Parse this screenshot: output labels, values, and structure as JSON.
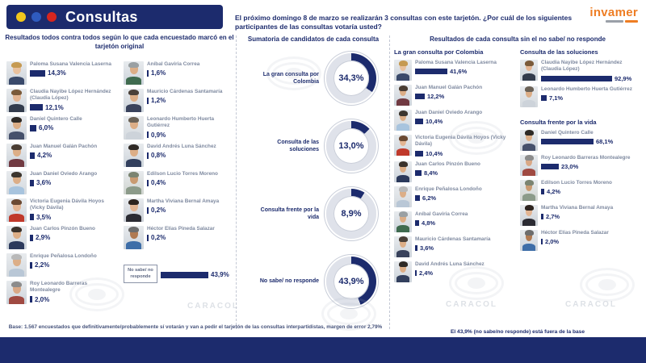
{
  "header": {
    "title": "Consultas",
    "dot_colors": [
      "#f2c71d",
      "#2f5bbf",
      "#d6261f"
    ]
  },
  "intro": {
    "text": "El próximo domingo 8 de marzo se realizarán 3 consultas con este tarjetón. ¿Por cuál de los siguientes participantes de las consultas votaría usted?"
  },
  "logo": {
    "text": "invamer",
    "color": "#ee7d23"
  },
  "colors": {
    "navy": "#1c2b6d",
    "bar": "#1c2b6d",
    "track": "#dfe2ea",
    "name_gray": "#7f8aa0"
  },
  "left_panel": {
    "title": "Resultados todos contra todos según lo que cada encuestado marcó en el tarjetón original",
    "columns": [
      [
        {
          "name": "Paloma Susana Valencia Laserna",
          "value": 14.3,
          "pct": "14,3%",
          "photo": {
            "bg": "#ccd3da",
            "hair": "#c59a52",
            "skin": "#e8c19e",
            "top": "#3a4a6b"
          }
        },
        {
          "name": "Claudia Nayibe López Hernández (Claudia López)",
          "value": 12.1,
          "pct": "12,1%",
          "photo": {
            "bg": "#ccd3da",
            "hair": "#7a5a3a",
            "skin": "#e3b593",
            "top": "#333c4d"
          }
        },
        {
          "name": "Daniel Quintero Calle",
          "value": 6.0,
          "pct": "6,0%",
          "photo": {
            "bg": "#c7ced6",
            "hair": "#2e2a26",
            "skin": "#dcae87",
            "top": "#45506b"
          }
        },
        {
          "name": "Juan Manuel Galán Pachón",
          "value": 4.2,
          "pct": "4,2%",
          "photo": {
            "bg": "#ccd3da",
            "hair": "#4a3d33",
            "skin": "#dcae87",
            "top": "#713a42"
          }
        },
        {
          "name": "Juan Daniel Oviedo Arango",
          "value": 3.6,
          "pct": "3,6%",
          "photo": {
            "bg": "#d4d9de",
            "hair": "#3c362f",
            "skin": "#dcae87",
            "top": "#a8c4de"
          }
        },
        {
          "name": "Victoria Eugenia Dávila Hoyos (Vicky Dávila)",
          "value": 3.5,
          "pct": "3,5%",
          "photo": {
            "bg": "#ccd3da",
            "hair": "#6b4a33",
            "skin": "#e3b593",
            "top": "#c0392b"
          }
        },
        {
          "name": "Juan Carlos Pinzón Bueno",
          "value": 2.9,
          "pct": "2,9%",
          "photo": {
            "bg": "#ccd3da",
            "hair": "#3a322b",
            "skin": "#dcae87",
            "top": "#2c3a5c"
          }
        },
        {
          "name": "Enrique Peñalosa Londoño",
          "value": 2.2,
          "pct": "2,2%",
          "photo": {
            "bg": "#d4d9de",
            "hair": "#b9b9b9",
            "skin": "#dcae87",
            "top": "#b9c7d6"
          }
        },
        {
          "name": "Roy Leonardo Barreras Montealegre",
          "value": 2.0,
          "pct": "2,0%",
          "photo": {
            "bg": "#ccd3da",
            "hair": "#8c8c8c",
            "skin": "#d9a886",
            "top": "#a04a42"
          }
        }
      ],
      [
        {
          "name": "Aníbal Gaviria Correa",
          "value": 1.6,
          "pct": "1,6%",
          "photo": {
            "bg": "#ccd3da",
            "hair": "#9aa0a3",
            "skin": "#dcae87",
            "top": "#3f6b4f"
          }
        },
        {
          "name": "Mauricio Cárdenas Santamaría",
          "value": 1.2,
          "pct": "1,2%",
          "photo": {
            "bg": "#ccd3da",
            "hair": "#4a4038",
            "skin": "#dcae87",
            "top": "#39425c"
          }
        },
        {
          "name": "Leonardo Humberto Huerta Gutiérrez",
          "value": 0.9,
          "pct": "0,9%",
          "photo": {
            "bg": "#d4d9de",
            "hair": "#6b6257",
            "skin": "#dcae87",
            "top": "#cdd3da"
          }
        },
        {
          "name": "David Andrés Luna Sánchez",
          "value": 0.8,
          "pct": "0,8%",
          "photo": {
            "bg": "#ccd3da",
            "hair": "#2f2a26",
            "skin": "#dcae87",
            "top": "#33405e"
          }
        },
        {
          "name": "Edilson Lucio Torres Moreno",
          "value": 0.4,
          "pct": "0,4%",
          "photo": {
            "bg": "#d0d4cf",
            "hair": "#7b8471",
            "skin": "#c99b72",
            "top": "#8c9b8a"
          }
        },
        {
          "name": "Martha Viviana Bernal Amaya",
          "value": 0.2,
          "pct": "0,2%",
          "photo": {
            "bg": "#c9ced5",
            "hair": "#2e241f",
            "skin": "#e3b593",
            "top": "#2b2b33"
          }
        },
        {
          "name": "Héctor Elías Pineda Salazar",
          "value": 0.2,
          "pct": "0,2%",
          "photo": {
            "bg": "#ccd3da",
            "hair": "#6d6d6d",
            "skin": "#b07a52",
            "top": "#3e6ea8"
          }
        },
        {
          "box": true,
          "name": "No sabe/ no responde",
          "value": 43.9,
          "pct": "43,9%"
        }
      ]
    ]
  },
  "middle_panel": {
    "title": "Sumatoria de candidatos de cada consulta",
    "donuts": [
      {
        "label": "La gran consulta por Colombia",
        "value": 34.3,
        "pct": "34,3%"
      },
      {
        "label": "Consulta de las soluciones",
        "value": 13.0,
        "pct": "13,0%"
      },
      {
        "label": "Consulta frente por la vida",
        "value": 8.9,
        "pct": "8,9%"
      },
      {
        "label": "No sabe/ no responde",
        "value": 43.9,
        "pct": "43,9%"
      }
    ]
  },
  "right_panel": {
    "title": "Resultados de cada consulta sin el no sabe/ no responde",
    "groups": [
      {
        "header": "La gran consulta por Colombia",
        "items": [
          {
            "name": "Paloma Susana Valencia Laserna",
            "value": 41.6,
            "pct": "41,6%",
            "photo": {
              "bg": "#ccd3da",
              "hair": "#c59a52",
              "skin": "#e8c19e",
              "top": "#3a4a6b"
            }
          },
          {
            "name": "Juan Manuel Galán Pachón",
            "value": 12.2,
            "pct": "12,2%",
            "photo": {
              "bg": "#ccd3da",
              "hair": "#4a3d33",
              "skin": "#dcae87",
              "top": "#713a42"
            }
          },
          {
            "name": "Juan Daniel Oviedo Arango",
            "value": 10.4,
            "pct": "10,4%",
            "photo": {
              "bg": "#d4d9de",
              "hair": "#3c362f",
              "skin": "#dcae87",
              "top": "#a8c4de"
            }
          },
          {
            "name": "Victoria Eugenia Dávila Hoyos (Vicky Dávila)",
            "value": 10.4,
            "pct": "10,4%",
            "photo": {
              "bg": "#ccd3da",
              "hair": "#6b4a33",
              "skin": "#e3b593",
              "top": "#c0392b"
            }
          },
          {
            "name": "Juan Carlos Pinzón Bueno",
            "value": 8.4,
            "pct": "8,4%",
            "photo": {
              "bg": "#ccd3da",
              "hair": "#3a322b",
              "skin": "#dcae87",
              "top": "#2c3a5c"
            }
          },
          {
            "name": "Enrique Peñalosa Londoño",
            "value": 6.2,
            "pct": "6,2%",
            "photo": {
              "bg": "#d4d9de",
              "hair": "#b9b9b9",
              "skin": "#dcae87",
              "top": "#b9c7d6"
            }
          },
          {
            "name": "Aníbal Gaviria Correa",
            "value": 4.8,
            "pct": "4,8%",
            "photo": {
              "bg": "#ccd3da",
              "hair": "#9aa0a3",
              "skin": "#dcae87",
              "top": "#3f6b4f"
            }
          },
          {
            "name": "Mauricio Cárdenas Santamaría",
            "value": 3.6,
            "pct": "3,6%",
            "photo": {
              "bg": "#ccd3da",
              "hair": "#4a4038",
              "skin": "#dcae87",
              "top": "#39425c"
            }
          },
          {
            "name": "David Andrés Luna Sánchez",
            "value": 2.4,
            "pct": "2,4%",
            "photo": {
              "bg": "#ccd3da",
              "hair": "#2f2a26",
              "skin": "#dcae87",
              "top": "#33405e"
            }
          }
        ]
      },
      {
        "header": "Consulta de las soluciones",
        "items": [
          {
            "name": "Claudia Nayibe López Hernández (Claudia López)",
            "value": 92.9,
            "pct": "92,9%",
            "photo": {
              "bg": "#ccd3da",
              "hair": "#7a5a3a",
              "skin": "#e3b593",
              "top": "#333c4d"
            }
          },
          {
            "name": "Leonardo Humberto Huerta Gutiérrez",
            "value": 7.1,
            "pct": "7,1%",
            "photo": {
              "bg": "#d4d9de",
              "hair": "#6b6257",
              "skin": "#dcae87",
              "top": "#cdd3da"
            }
          }
        ]
      },
      {
        "header": "Consulta frente por la vida",
        "items": [
          {
            "name": "Daniel Quintero Calle",
            "value": 68.1,
            "pct": "68,1%",
            "photo": {
              "bg": "#c7ced6",
              "hair": "#2e2a26",
              "skin": "#dcae87",
              "top": "#45506b"
            }
          },
          {
            "name": "Roy Leonardo Barreras Montealegre",
            "value": 23.0,
            "pct": "23,0%",
            "photo": {
              "bg": "#ccd3da",
              "hair": "#8c8c8c",
              "skin": "#d9a886",
              "top": "#a04a42"
            }
          },
          {
            "name": "Edilson Lucio Torres Moreno",
            "value": 4.2,
            "pct": "4,2%",
            "photo": {
              "bg": "#d0d4cf",
              "hair": "#7b8471",
              "skin": "#c99b72",
              "top": "#8c9b8a"
            }
          },
          {
            "name": "Martha Viviana Bernal Amaya",
            "value": 2.7,
            "pct": "2,7%",
            "photo": {
              "bg": "#c9ced5",
              "hair": "#2e241f",
              "skin": "#e3b593",
              "top": "#2b2b33"
            }
          },
          {
            "name": "Héctor Elías Pineda Salazar",
            "value": 2.0,
            "pct": "2,0%",
            "photo": {
              "bg": "#ccd3da",
              "hair": "#6d6d6d",
              "skin": "#b07a52",
              "top": "#3e6ea8"
            }
          }
        ]
      }
    ]
  },
  "footers": {
    "base": "Base: 1.567 encuestados que definitivamente/probablemente sí votarán y van a pedir el tarjetón de las consultas interpartidistas, margen de error 2,79%",
    "right": "El 43,9% (no sabe/no responde) está fuera de la base"
  },
  "watermark": {
    "brand": "CARACOL"
  },
  "chart_data": [
    {
      "type": "bar",
      "title": "Resultados todos contra todos según lo que cada encuestado marcó en el tarjetón original",
      "categories": [
        "Paloma Susana Valencia Laserna",
        "Claudia Nayibe López Hernández (Claudia López)",
        "Daniel Quintero Calle",
        "Juan Manuel Galán Pachón",
        "Juan Daniel Oviedo Arango",
        "Victoria Eugenia Dávila Hoyos (Vicky Dávila)",
        "Juan Carlos Pinzón Bueno",
        "Enrique Peñalosa Londoño",
        "Roy Leonardo Barreras Montealegre",
        "Aníbal Gaviria Correa",
        "Mauricio Cárdenas Santamaría",
        "Leonardo Humberto Huerta Gutiérrez",
        "David Andrés Luna Sánchez",
        "Edilson Lucio Torres Moreno",
        "Martha Viviana Bernal Amaya",
        "Héctor Elías Pineda Salazar",
        "No sabe/ no responde"
      ],
      "values": [
        14.3,
        12.1,
        6.0,
        4.2,
        3.6,
        3.5,
        2.9,
        2.2,
        2.0,
        1.6,
        1.2,
        0.9,
        0.8,
        0.4,
        0.2,
        0.2,
        43.9
      ],
      "unit": "%"
    },
    {
      "type": "pie",
      "title": "Sumatoria de candidatos de cada consulta",
      "categories": [
        "La gran consulta por Colombia",
        "Consulta de las soluciones",
        "Consulta frente por la vida",
        "No sabe/ no responde"
      ],
      "values": [
        34.3,
        13.0,
        8.9,
        43.9
      ],
      "unit": "%"
    },
    {
      "type": "bar",
      "title": "La gran consulta por Colombia (sin no sabe/no responde)",
      "categories": [
        "Paloma Susana Valencia Laserna",
        "Juan Manuel Galán Pachón",
        "Juan Daniel Oviedo Arango",
        "Victoria Eugenia Dávila Hoyos (Vicky Dávila)",
        "Juan Carlos Pinzón Bueno",
        "Enrique Peñalosa Londoño",
        "Aníbal Gaviria Correa",
        "Mauricio Cárdenas Santamaría",
        "David Andrés Luna Sánchez"
      ],
      "values": [
        41.6,
        12.2,
        10.4,
        10.4,
        8.4,
        6.2,
        4.8,
        3.6,
        2.4
      ],
      "unit": "%"
    },
    {
      "type": "bar",
      "title": "Consulta de las soluciones (sin no sabe/no responde)",
      "categories": [
        "Claudia Nayibe López Hernández (Claudia López)",
        "Leonardo Humberto Huerta Gutiérrez"
      ],
      "values": [
        92.9,
        7.1
      ],
      "unit": "%"
    },
    {
      "type": "bar",
      "title": "Consulta frente por la vida (sin no sabe/no responde)",
      "categories": [
        "Daniel Quintero Calle",
        "Roy Leonardo Barreras Montealegre",
        "Edilson Lucio Torres Moreno",
        "Martha Viviana Bernal Amaya",
        "Héctor Elías Pineda Salazar"
      ],
      "values": [
        68.1,
        23.0,
        4.2,
        2.7,
        2.0
      ],
      "unit": "%"
    }
  ]
}
